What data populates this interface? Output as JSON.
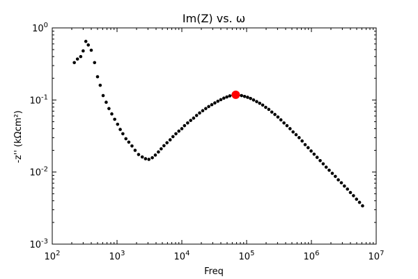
{
  "chart_data": {
    "type": "scatter",
    "title": "Im(Z) vs. ω",
    "xlabel": "Freq",
    "ylabel": "-z'' (kΩcm²)",
    "xscale": "log",
    "yscale": "log",
    "xlim": [
      100,
      10000000
    ],
    "ylim": [
      0.001,
      1
    ],
    "x_ticks": [
      {
        "value": 100,
        "base": "10",
        "exp": "2"
      },
      {
        "value": 1000,
        "base": "10",
        "exp": "3"
      },
      {
        "value": 10000,
        "base": "10",
        "exp": "4"
      },
      {
        "value": 100000,
        "base": "10",
        "exp": "5"
      },
      {
        "value": 1000000,
        "base": "10",
        "exp": "6"
      },
      {
        "value": 10000000,
        "base": "10",
        "exp": "7"
      }
    ],
    "y_ticks": [
      {
        "value": 0.001,
        "base": "10",
        "exp": "-3"
      },
      {
        "value": 0.01,
        "base": "10",
        "exp": "-2"
      },
      {
        "value": 0.1,
        "base": "10",
        "exp": "-1"
      },
      {
        "value": 1,
        "base": "10",
        "exp": "0"
      }
    ],
    "grid": false,
    "marker_color": "#000000",
    "highlight_color": "#ff0000",
    "series": [
      {
        "points": [
          [
            219,
            0.33
          ],
          [
            245,
            0.37
          ],
          [
            275,
            0.4
          ],
          [
            300,
            0.48
          ],
          [
            330,
            0.65
          ],
          [
            360,
            0.58
          ],
          [
            400,
            0.49
          ],
          [
            450,
            0.33
          ],
          [
            500,
            0.21
          ],
          [
            550,
            0.16
          ],
          [
            610,
            0.115
          ],
          [
            680,
            0.093
          ],
          [
            750,
            0.076
          ],
          [
            830,
            0.064
          ],
          [
            920,
            0.054
          ],
          [
            1020,
            0.046
          ],
          [
            1120,
            0.039
          ],
          [
            1230,
            0.034
          ],
          [
            1370,
            0.029
          ],
          [
            1520,
            0.026
          ],
          [
            1700,
            0.023
          ],
          [
            1900,
            0.02
          ],
          [
            2150,
            0.0175
          ],
          [
            2450,
            0.0162
          ],
          [
            2750,
            0.0153
          ],
          [
            3100,
            0.015
          ],
          [
            3500,
            0.0158
          ],
          [
            3900,
            0.0172
          ],
          [
            4350,
            0.019
          ],
          [
            4800,
            0.021
          ],
          [
            5300,
            0.0232
          ],
          [
            5900,
            0.0255
          ],
          [
            6600,
            0.028
          ],
          [
            7300,
            0.031
          ],
          [
            8100,
            0.034
          ],
          [
            9000,
            0.037
          ],
          [
            10000,
            0.04
          ],
          [
            11000,
            0.044
          ],
          [
            12300,
            0.048
          ],
          [
            13700,
            0.052
          ],
          [
            15200,
            0.056
          ],
          [
            16900,
            0.061
          ],
          [
            18800,
            0.066
          ],
          [
            21000,
            0.071
          ],
          [
            23400,
            0.076
          ],
          [
            26000,
            0.081
          ],
          [
            29000,
            0.086
          ],
          [
            32300,
            0.091
          ],
          [
            36000,
            0.096
          ],
          [
            40000,
            0.101
          ],
          [
            44500,
            0.106
          ],
          [
            49500,
            0.11
          ],
          [
            55000,
            0.114
          ],
          [
            61500,
            0.117
          ],
          [
            75000,
            0.117
          ],
          [
            83500,
            0.115
          ],
          [
            93000,
            0.112
          ],
          [
            103500,
            0.109
          ],
          [
            115000,
            0.105
          ],
          [
            128000,
            0.1
          ],
          [
            143000,
            0.095
          ],
          [
            159000,
            0.09
          ],
          [
            177000,
            0.085
          ],
          [
            197000,
            0.079
          ],
          [
            220000,
            0.074
          ],
          [
            245000,
            0.068
          ],
          [
            273000,
            0.063
          ],
          [
            304000,
            0.058
          ],
          [
            338000,
            0.053
          ],
          [
            377000,
            0.048
          ],
          [
            420000,
            0.044
          ],
          [
            468000,
            0.04
          ],
          [
            521000,
            0.036
          ],
          [
            580000,
            0.033
          ],
          [
            646000,
            0.03
          ],
          [
            719000,
            0.027
          ],
          [
            800000,
            0.024
          ],
          [
            890000,
            0.0218
          ],
          [
            990000,
            0.0196
          ],
          [
            1100000,
            0.0177
          ],
          [
            1225000,
            0.016
          ],
          [
            1365000,
            0.0144
          ],
          [
            1520000,
            0.013
          ],
          [
            1690000,
            0.0117
          ],
          [
            1880000,
            0.0106
          ],
          [
            2100000,
            0.0096
          ],
          [
            2340000,
            0.0087
          ],
          [
            2600000,
            0.0078
          ],
          [
            2900000,
            0.0071
          ],
          [
            3230000,
            0.0064
          ],
          [
            3600000,
            0.0058
          ],
          [
            4000000,
            0.0052
          ],
          [
            4460000,
            0.0047
          ],
          [
            4970000,
            0.0042
          ],
          [
            5530000,
            0.0038
          ],
          [
            6160000,
            0.0034
          ]
        ]
      }
    ],
    "highlight_point": [
      68000,
      0.118
    ]
  }
}
